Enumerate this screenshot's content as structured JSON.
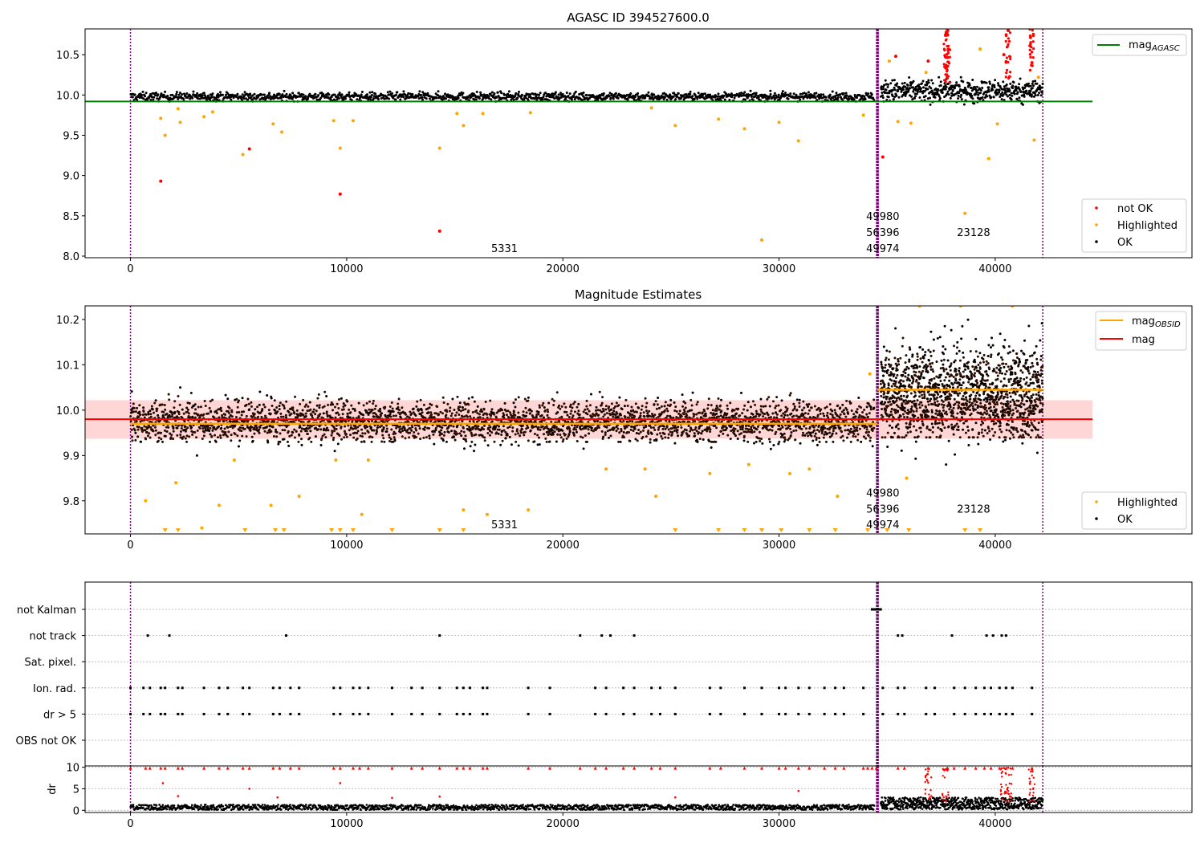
{
  "figure": {
    "colors": {
      "ok": "#000000",
      "highlighted": "#ffa500",
      "not_ok": "#ff0000",
      "mag_agasc": "#008000",
      "mag_line": "#ff0000",
      "mag_obsid": "#ffa500",
      "obsid_boundary": "#800080",
      "band": "#ffd6d6",
      "grid": "#b0b0b0"
    }
  },
  "chart_data": [
    {
      "type": "scatter",
      "title": "AGASC ID 394527600.0",
      "xlim": [
        -2100,
        49100
      ],
      "ylim": [
        7.98,
        10.82
      ],
      "xticks": [
        "0",
        "10000",
        "20000",
        "30000",
        "40000"
      ],
      "xtick_values": [
        0,
        10000,
        20000,
        30000,
        40000
      ],
      "yticks": [
        "8.0",
        "8.5",
        "9.0",
        "9.5",
        "10.0",
        "10.5"
      ],
      "ytick_values": [
        8.0,
        8.5,
        9.0,
        9.5,
        10.0,
        10.5
      ],
      "mag_agasc": 9.92,
      "mag_agasc_range": [
        -2100,
        44500
      ],
      "obsid_boundaries": [
        0,
        34550,
        42200
      ],
      "ok_bands": [
        {
          "x_start": 0,
          "x_end": 34400,
          "y_center": 9.98,
          "y_low": 9.92,
          "y_high": 10.05
        },
        {
          "x_start": 34700,
          "x_end": 42200,
          "y_center": 10.05,
          "y_low": 9.88,
          "y_high": 10.22
        }
      ],
      "highlighted_points": [
        [
          1400,
          9.71
        ],
        [
          1600,
          9.5
        ],
        [
          2200,
          9.83
        ],
        [
          2300,
          9.66
        ],
        [
          3400,
          9.73
        ],
        [
          3800,
          9.79
        ],
        [
          5200,
          9.26
        ],
        [
          6600,
          9.64
        ],
        [
          7000,
          9.54
        ],
        [
          9400,
          9.68
        ],
        [
          9700,
          9.34
        ],
        [
          10300,
          9.68
        ],
        [
          14300,
          9.34
        ],
        [
          15100,
          9.77
        ],
        [
          15400,
          9.62
        ],
        [
          16300,
          9.77
        ],
        [
          18500,
          9.78
        ],
        [
          24100,
          9.84
        ],
        [
          25200,
          9.62
        ],
        [
          27200,
          9.7
        ],
        [
          28400,
          9.58
        ],
        [
          29200,
          8.2
        ],
        [
          30000,
          9.66
        ],
        [
          30900,
          9.43
        ],
        [
          33900,
          9.75
        ],
        [
          35100,
          10.42
        ],
        [
          35500,
          9.67
        ],
        [
          36100,
          9.65
        ],
        [
          36800,
          10.28
        ],
        [
          38600,
          8.53
        ],
        [
          39300,
          10.57
        ],
        [
          39700,
          9.21
        ],
        [
          40100,
          9.64
        ],
        [
          41800,
          9.44
        ],
        [
          42000,
          10.22
        ]
      ],
      "not_ok_points": [
        [
          1400,
          8.93
        ],
        [
          5500,
          9.33
        ],
        [
          9700,
          8.77
        ],
        [
          14300,
          8.31
        ],
        [
          34800,
          9.23
        ],
        [
          35400,
          10.48
        ],
        [
          36900,
          10.42
        ],
        [
          37700,
          10.74
        ],
        [
          37800,
          10.8
        ],
        [
          40400,
          10.5
        ],
        [
          40600,
          10.8
        ],
        [
          41700,
          10.4
        ]
      ],
      "annotations": [
        {
          "text": "5331",
          "x": 17300,
          "y": 8.1
        },
        {
          "text": "49980",
          "x": 34800,
          "y": 8.5
        },
        {
          "text": "56396",
          "x": 34800,
          "y": 8.3
        },
        {
          "text": "49974",
          "x": 34800,
          "y": 8.1
        },
        {
          "text": "23128",
          "x": 39000,
          "y": 8.3
        }
      ],
      "legend_position": "top-right",
      "legend": [
        {
          "label": "mag",
          "sub": "AGASC"
        }
      ],
      "legend2_position": "bottom-right",
      "legend2": [
        {
          "label": "not OK"
        },
        {
          "label": "Highlighted"
        },
        {
          "label": "OK"
        }
      ]
    },
    {
      "type": "scatter",
      "title": "Magnitude Estimates",
      "xlim": [
        -2100,
        49100
      ],
      "ylim": [
        9.727,
        10.23
      ],
      "xticks": [
        "0",
        "10000",
        "20000",
        "30000",
        "40000"
      ],
      "xtick_values": [
        0,
        10000,
        20000,
        30000,
        40000
      ],
      "yticks": [
        "9.8",
        "9.9",
        "10.0",
        "10.1",
        "10.2"
      ],
      "ytick_values": [
        9.8,
        9.9,
        10.0,
        10.1,
        10.2
      ],
      "mag": 9.98,
      "mag_band": [
        9.937,
        10.022
      ],
      "mag_range": [
        -2100,
        44500
      ],
      "mag_obsid": [
        {
          "x_start": 0,
          "x_end": 34550,
          "value": 9.97
        },
        {
          "x_start": 34550,
          "x_end": 42200,
          "value": 10.045
        }
      ],
      "obsid_boundaries": [
        0,
        34550,
        42200
      ],
      "ok_bands": [
        {
          "x_start": 0,
          "x_end": 34400,
          "y_center": 9.975,
          "y_low": 9.93,
          "y_high": 10.04
        },
        {
          "x_start": 34700,
          "x_end": 42200,
          "y_center": 10.03,
          "y_low": 9.94,
          "y_high": 10.18
        }
      ],
      "highlighted_points": [
        [
          700,
          9.8
        ],
        [
          2100,
          9.84
        ],
        [
          3300,
          9.74
        ],
        [
          4100,
          9.79
        ],
        [
          4800,
          9.89
        ],
        [
          6500,
          9.79
        ],
        [
          7800,
          9.81
        ],
        [
          9500,
          9.89
        ],
        [
          10700,
          9.77
        ],
        [
          11000,
          9.89
        ],
        [
          15400,
          9.78
        ],
        [
          16500,
          9.77
        ],
        [
          18400,
          9.78
        ],
        [
          22000,
          9.87
        ],
        [
          23800,
          9.87
        ],
        [
          24300,
          9.81
        ],
        [
          26800,
          9.86
        ],
        [
          28600,
          9.88
        ],
        [
          30500,
          9.86
        ],
        [
          31400,
          9.87
        ],
        [
          32700,
          9.81
        ],
        [
          34200,
          10.08
        ],
        [
          35900,
          9.85
        ],
        [
          36500,
          10.23
        ],
        [
          38400,
          10.23
        ],
        [
          40800,
          10.23
        ]
      ],
      "highlighted_triangles_x": [
        1600,
        2200,
        5300,
        6700,
        7100,
        9300,
        9700,
        10300,
        12100,
        14300,
        15400,
        25200,
        27200,
        28400,
        29200,
        30100,
        31400,
        32600,
        34100,
        35000,
        36000,
        38600,
        39300
      ],
      "annotations": [
        {
          "text": "5331",
          "x": 17300,
          "y": 9.748
        },
        {
          "text": "49980",
          "x": 34800,
          "y": 9.818
        },
        {
          "text": "56396",
          "x": 34800,
          "y": 9.783
        },
        {
          "text": "49974",
          "x": 34800,
          "y": 9.748
        },
        {
          "text": "23128",
          "x": 39000,
          "y": 9.783
        }
      ],
      "legend_position": "top-right",
      "legend": [
        {
          "label": "mag",
          "sub": "OBSID"
        },
        {
          "label": "mag"
        }
      ],
      "legend2_position": "bottom-right",
      "legend2": [
        {
          "label": "Highlighted"
        },
        {
          "label": "OK"
        }
      ]
    },
    {
      "type": "scatter",
      "title": "",
      "xlim": [
        -2100,
        49100
      ],
      "flag_rows": [
        "not Kalman",
        "not track",
        "Sat. pixel.",
        "Ion. rad.",
        "dr > 5",
        "OBS not OK"
      ],
      "flags": [
        {
          "row": "not Kalman",
          "x": [
            34300,
            34400,
            34500,
            34600,
            34700
          ]
        },
        {
          "row": "not track",
          "x": [
            800,
            1800,
            7200,
            14300,
            20800,
            21800,
            22200,
            23300,
            35500,
            35700,
            38000,
            39600,
            39900,
            40300,
            40500
          ]
        },
        {
          "row": "Sat. pixel.",
          "x": []
        },
        {
          "row": "Ion. rad.",
          "x": [
            0,
            600,
            900,
            1400,
            1600,
            2200,
            2400,
            3400,
            4100,
            4500,
            5200,
            5500,
            6600,
            6900,
            7400,
            7800,
            9400,
            9700,
            10300,
            10600,
            11000,
            12100,
            13000,
            13500,
            14300,
            15100,
            15400,
            15700,
            16300,
            16500,
            18400,
            19400,
            21500,
            22000,
            22800,
            23300,
            24100,
            24500,
            25200,
            26800,
            27300,
            28400,
            29200,
            30000,
            30300,
            30900,
            31400,
            32100,
            32600,
            33000,
            33900,
            34800,
            35500,
            35800,
            36800,
            37200,
            38100,
            38600,
            39100,
            39500,
            39800,
            40200,
            40500,
            40800,
            41700
          ]
        },
        {
          "row": "dr > 5",
          "x": [
            0,
            600,
            900,
            1400,
            1600,
            2200,
            2400,
            3400,
            4100,
            4500,
            5200,
            5500,
            6600,
            6900,
            7400,
            7800,
            9400,
            9700,
            10300,
            10600,
            11000,
            12100,
            13000,
            13500,
            14300,
            15100,
            15400,
            15700,
            16300,
            16500,
            18400,
            19400,
            21500,
            22000,
            22800,
            23300,
            24100,
            24500,
            25200,
            26800,
            27300,
            28400,
            29200,
            30000,
            30300,
            30900,
            31400,
            32100,
            32600,
            33000,
            33900,
            34800,
            35500,
            35800,
            36800,
            37200,
            38100,
            38600,
            39100,
            39500,
            39800,
            40200,
            40500,
            40800,
            41700
          ]
        },
        {
          "row": "OBS not OK",
          "x": []
        }
      ],
      "obsid_boundaries": [
        0,
        34550,
        42200
      ]
    },
    {
      "type": "scatter",
      "title": "",
      "ylabel": "dr",
      "xlim": [
        -2100,
        49100
      ],
      "ylim": [
        -0.5,
        10.3
      ],
      "xticks": [
        "0",
        "10000",
        "20000",
        "30000",
        "40000"
      ],
      "xtick_values": [
        0,
        10000,
        20000,
        30000,
        40000
      ],
      "yticks": [
        "0",
        "5",
        "10"
      ],
      "ytick_values": [
        0,
        5,
        10
      ],
      "ok_bands": [
        {
          "x_start": 0,
          "x_end": 34400,
          "y_low": 0.1,
          "y_high": 1.3
        },
        {
          "x_start": 34700,
          "x_end": 42200,
          "y_low": 0.2,
          "y_high": 3.0
        }
      ],
      "high_dr_points": [
        [
          1500,
          6.3
        ],
        [
          2200,
          3.3
        ],
        [
          5500,
          5.0
        ],
        [
          6800,
          3.0
        ],
        [
          9700,
          6.3
        ],
        [
          12100,
          2.9
        ],
        [
          14300,
          3.2
        ],
        [
          25200,
          3.0
        ],
        [
          30900,
          4.5
        ],
        [
          36900,
          9.7
        ],
        [
          37700,
          9.5
        ],
        [
          40400,
          9.8
        ],
        [
          40600,
          9.9
        ],
        [
          41700,
          9.4
        ]
      ],
      "cap_x": [
        0,
        700,
        900,
        1400,
        1600,
        2200,
        2400,
        3400,
        4100,
        4500,
        5200,
        5500,
        6600,
        6900,
        7400,
        7800,
        9400,
        9700,
        10300,
        10600,
        11000,
        12100,
        13000,
        13500,
        14300,
        15100,
        15400,
        15700,
        16300,
        16500,
        18400,
        19400,
        20800,
        21500,
        22000,
        22800,
        23300,
        24100,
        24500,
        25200,
        26800,
        27300,
        28400,
        29200,
        30000,
        30300,
        30900,
        31400,
        32100,
        32600,
        33000,
        33900,
        34100,
        34300,
        34500,
        35500,
        35800,
        36900,
        37800,
        38100,
        38600,
        39100,
        39500,
        39800,
        40200,
        40500,
        40800,
        41700
      ],
      "obsid_boundaries": [
        0,
        34550,
        42200
      ]
    }
  ]
}
